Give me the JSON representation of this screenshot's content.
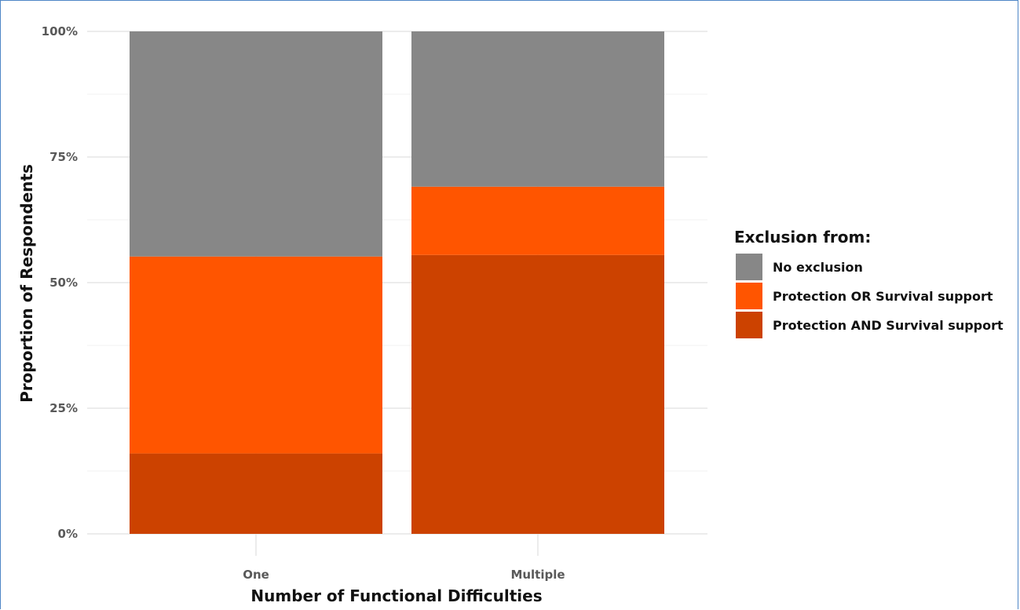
{
  "chart_data": {
    "type": "bar",
    "stacked": true,
    "categories": [
      "One",
      "Multiple"
    ],
    "series": [
      {
        "name": "Protection AND Survival support",
        "color": "#cc4200",
        "values": [
          16,
          55.5
        ]
      },
      {
        "name": "Protection OR Survival support",
        "color": "#ff5500",
        "values": [
          39.2,
          13.6
        ]
      },
      {
        "name": "No exclusion",
        "color": "#878787",
        "values": [
          44.8,
          30.9
        ]
      }
    ],
    "ylim": [
      0,
      100
    ],
    "yticks": [
      0,
      25,
      50,
      75,
      100
    ],
    "ytick_labels": [
      "0%",
      "25%",
      "50%",
      "75%",
      "100%"
    ],
    "xlabel": "Number of Functional Difficulties",
    "ylabel": "Proportion of Respondents",
    "grid": true,
    "legend": {
      "title": "Exclusion from:",
      "position": "right",
      "items": [
        {
          "label": "No exclusion",
          "color": "#878787"
        },
        {
          "label": "Protection OR Survival support",
          "color": "#ff5500"
        },
        {
          "label": "Protection AND Survival support",
          "color": "#cc4200"
        }
      ]
    }
  }
}
